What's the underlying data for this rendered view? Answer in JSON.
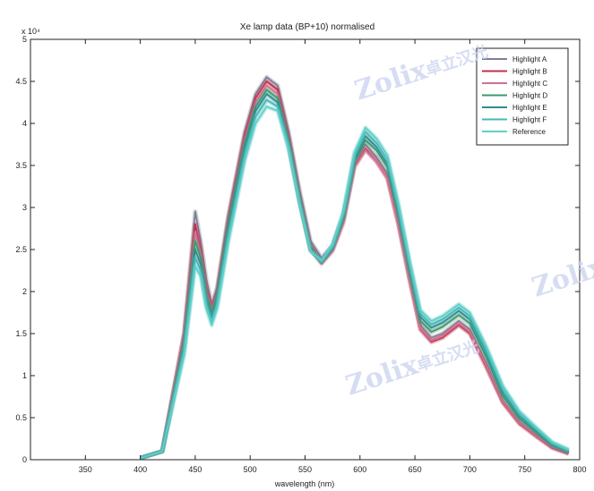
{
  "chart_data": {
    "type": "line",
    "title": "Xe lamp data (BP+10) normalised",
    "xlabel": "wavelength (nm)",
    "ylabel": "",
    "y_multiplier": "x 10⁴",
    "xlim": [
      300,
      800
    ],
    "ylim": [
      0,
      5
    ],
    "xticks": [
      "350",
      "400",
      "450",
      "500",
      "550",
      "600",
      "650",
      "700",
      "750",
      "800"
    ],
    "yticks": [
      "0",
      "0.5",
      "1",
      "1.5",
      "2",
      "2.5",
      "3",
      "3.5",
      "4",
      "4.5",
      "5"
    ],
    "grid": false,
    "legend_position": "top-right",
    "series": [
      {
        "name": "Highlight A",
        "color": "#7a7f95",
        "values": [
          [
            400,
            0.02
          ],
          [
            410,
            0.06
          ],
          [
            420,
            0.1
          ],
          [
            440,
            1.5
          ],
          [
            450,
            2.95
          ],
          [
            455,
            2.6
          ],
          [
            460,
            2.15
          ],
          [
            465,
            1.85
          ],
          [
            470,
            2.05
          ],
          [
            480,
            2.9
          ],
          [
            495,
            3.9
          ],
          [
            505,
            4.35
          ],
          [
            515,
            4.55
          ],
          [
            525,
            4.45
          ],
          [
            535,
            3.9
          ],
          [
            545,
            3.2
          ],
          [
            555,
            2.6
          ],
          [
            565,
            2.4
          ],
          [
            575,
            2.55
          ],
          [
            585,
            2.9
          ],
          [
            595,
            3.55
          ],
          [
            605,
            3.75
          ],
          [
            615,
            3.6
          ],
          [
            625,
            3.4
          ],
          [
            635,
            2.85
          ],
          [
            645,
            2.2
          ],
          [
            655,
            1.6
          ],
          [
            665,
            1.45
          ],
          [
            675,
            1.5
          ],
          [
            690,
            1.65
          ],
          [
            700,
            1.55
          ],
          [
            715,
            1.15
          ],
          [
            730,
            0.7
          ],
          [
            745,
            0.45
          ],
          [
            760,
            0.3
          ],
          [
            775,
            0.15
          ],
          [
            790,
            0.08
          ]
        ]
      },
      {
        "name": "Highlight B",
        "color": "#c0304a",
        "values": [
          [
            400,
            0.02
          ],
          [
            410,
            0.06
          ],
          [
            420,
            0.1
          ],
          [
            440,
            1.5
          ],
          [
            450,
            2.8
          ],
          [
            455,
            2.5
          ],
          [
            460,
            2.05
          ],
          [
            465,
            1.8
          ],
          [
            470,
            2.0
          ],
          [
            480,
            2.85
          ],
          [
            495,
            3.85
          ],
          [
            505,
            4.3
          ],
          [
            515,
            4.5
          ],
          [
            525,
            4.4
          ],
          [
            535,
            3.85
          ],
          [
            545,
            3.15
          ],
          [
            555,
            2.55
          ],
          [
            565,
            2.35
          ],
          [
            575,
            2.5
          ],
          [
            585,
            2.85
          ],
          [
            595,
            3.5
          ],
          [
            605,
            3.7
          ],
          [
            615,
            3.55
          ],
          [
            625,
            3.35
          ],
          [
            635,
            2.8
          ],
          [
            645,
            2.15
          ],
          [
            655,
            1.55
          ],
          [
            665,
            1.4
          ],
          [
            675,
            1.45
          ],
          [
            690,
            1.6
          ],
          [
            700,
            1.5
          ],
          [
            715,
            1.1
          ],
          [
            730,
            0.68
          ],
          [
            745,
            0.43
          ],
          [
            760,
            0.28
          ],
          [
            775,
            0.14
          ],
          [
            790,
            0.07
          ]
        ]
      },
      {
        "name": "Highlight C",
        "color": "#d07090",
        "values": [
          [
            400,
            0.02
          ],
          [
            410,
            0.06
          ],
          [
            420,
            0.1
          ],
          [
            440,
            1.45
          ],
          [
            450,
            2.7
          ],
          [
            455,
            2.45
          ],
          [
            460,
            2.0
          ],
          [
            465,
            1.78
          ],
          [
            470,
            1.98
          ],
          [
            480,
            2.8
          ],
          [
            495,
            3.8
          ],
          [
            505,
            4.25
          ],
          [
            515,
            4.45
          ],
          [
            525,
            4.35
          ],
          [
            535,
            3.8
          ],
          [
            545,
            3.1
          ],
          [
            555,
            2.5
          ],
          [
            565,
            2.33
          ],
          [
            575,
            2.48
          ],
          [
            585,
            2.82
          ],
          [
            595,
            3.48
          ],
          [
            605,
            3.68
          ],
          [
            615,
            3.55
          ],
          [
            625,
            3.35
          ],
          [
            635,
            2.8
          ],
          [
            645,
            2.15
          ],
          [
            655,
            1.56
          ],
          [
            665,
            1.42
          ],
          [
            675,
            1.48
          ],
          [
            690,
            1.62
          ],
          [
            700,
            1.52
          ],
          [
            715,
            1.12
          ],
          [
            730,
            0.69
          ],
          [
            745,
            0.44
          ],
          [
            760,
            0.29
          ],
          [
            775,
            0.15
          ],
          [
            790,
            0.08
          ]
        ]
      },
      {
        "name": "Highlight D",
        "color": "#3c9a6c",
        "values": [
          [
            400,
            0.02
          ],
          [
            410,
            0.06
          ],
          [
            420,
            0.1
          ],
          [
            440,
            1.4
          ],
          [
            450,
            2.6
          ],
          [
            455,
            2.4
          ],
          [
            460,
            1.95
          ],
          [
            465,
            1.75
          ],
          [
            470,
            1.95
          ],
          [
            480,
            2.78
          ],
          [
            495,
            3.75
          ],
          [
            505,
            4.2
          ],
          [
            515,
            4.4
          ],
          [
            525,
            4.3
          ],
          [
            535,
            3.78
          ],
          [
            545,
            3.1
          ],
          [
            555,
            2.52
          ],
          [
            565,
            2.35
          ],
          [
            575,
            2.52
          ],
          [
            585,
            2.88
          ],
          [
            595,
            3.55
          ],
          [
            605,
            3.8
          ],
          [
            615,
            3.68
          ],
          [
            625,
            3.48
          ],
          [
            635,
            2.92
          ],
          [
            645,
            2.25
          ],
          [
            655,
            1.65
          ],
          [
            665,
            1.52
          ],
          [
            675,
            1.58
          ],
          [
            690,
            1.72
          ],
          [
            700,
            1.62
          ],
          [
            715,
            1.22
          ],
          [
            730,
            0.76
          ],
          [
            745,
            0.49
          ],
          [
            760,
            0.33
          ],
          [
            775,
            0.17
          ],
          [
            790,
            0.09
          ]
        ]
      },
      {
        "name": "Highlight E",
        "color": "#2e8c8e",
        "values": [
          [
            400,
            0.02
          ],
          [
            410,
            0.06
          ],
          [
            420,
            0.1
          ],
          [
            440,
            1.35
          ],
          [
            450,
            2.5
          ],
          [
            455,
            2.32
          ],
          [
            460,
            1.9
          ],
          [
            465,
            1.7
          ],
          [
            470,
            1.9
          ],
          [
            480,
            2.72
          ],
          [
            495,
            3.7
          ],
          [
            505,
            4.15
          ],
          [
            515,
            4.35
          ],
          [
            525,
            4.25
          ],
          [
            535,
            3.75
          ],
          [
            545,
            3.08
          ],
          [
            555,
            2.5
          ],
          [
            565,
            2.35
          ],
          [
            575,
            2.52
          ],
          [
            585,
            2.9
          ],
          [
            595,
            3.58
          ],
          [
            605,
            3.85
          ],
          [
            615,
            3.72
          ],
          [
            625,
            3.52
          ],
          [
            635,
            2.96
          ],
          [
            645,
            2.3
          ],
          [
            655,
            1.7
          ],
          [
            665,
            1.57
          ],
          [
            675,
            1.63
          ],
          [
            690,
            1.77
          ],
          [
            700,
            1.67
          ],
          [
            715,
            1.27
          ],
          [
            730,
            0.8
          ],
          [
            745,
            0.52
          ],
          [
            760,
            0.35
          ],
          [
            775,
            0.18
          ],
          [
            790,
            0.1
          ]
        ]
      },
      {
        "name": "Highlight F",
        "color": "#48b8b8",
        "values": [
          [
            400,
            0.02
          ],
          [
            410,
            0.06
          ],
          [
            420,
            0.1
          ],
          [
            440,
            1.3
          ],
          [
            450,
            2.4
          ],
          [
            455,
            2.25
          ],
          [
            460,
            1.85
          ],
          [
            465,
            1.65
          ],
          [
            470,
            1.85
          ],
          [
            480,
            2.65
          ],
          [
            495,
            3.62
          ],
          [
            505,
            4.08
          ],
          [
            515,
            4.28
          ],
          [
            525,
            4.2
          ],
          [
            535,
            3.72
          ],
          [
            545,
            3.06
          ],
          [
            555,
            2.49
          ],
          [
            565,
            2.36
          ],
          [
            575,
            2.54
          ],
          [
            585,
            2.93
          ],
          [
            595,
            3.62
          ],
          [
            605,
            3.9
          ],
          [
            615,
            3.77
          ],
          [
            625,
            3.57
          ],
          [
            635,
            3.0
          ],
          [
            645,
            2.34
          ],
          [
            655,
            1.74
          ],
          [
            665,
            1.61
          ],
          [
            675,
            1.67
          ],
          [
            690,
            1.81
          ],
          [
            700,
            1.71
          ],
          [
            715,
            1.31
          ],
          [
            730,
            0.84
          ],
          [
            745,
            0.55
          ],
          [
            760,
            0.37
          ],
          [
            775,
            0.2
          ],
          [
            790,
            0.11
          ]
        ]
      },
      {
        "name": "Reference",
        "color": "#5fcfc8",
        "values": [
          [
            400,
            0.02
          ],
          [
            410,
            0.06
          ],
          [
            420,
            0.1
          ],
          [
            440,
            1.25
          ],
          [
            450,
            2.3
          ],
          [
            455,
            2.18
          ],
          [
            460,
            1.8
          ],
          [
            465,
            1.6
          ],
          [
            470,
            1.8
          ],
          [
            480,
            2.58
          ],
          [
            495,
            3.55
          ],
          [
            505,
            4.0
          ],
          [
            515,
            4.2
          ],
          [
            525,
            4.15
          ],
          [
            535,
            3.7
          ],
          [
            545,
            3.05
          ],
          [
            555,
            2.48
          ],
          [
            565,
            2.37
          ],
          [
            575,
            2.56
          ],
          [
            585,
            2.96
          ],
          [
            595,
            3.66
          ],
          [
            605,
            3.95
          ],
          [
            615,
            3.82
          ],
          [
            625,
            3.62
          ],
          [
            635,
            3.05
          ],
          [
            645,
            2.38
          ],
          [
            655,
            1.78
          ],
          [
            665,
            1.65
          ],
          [
            675,
            1.71
          ],
          [
            690,
            1.85
          ],
          [
            700,
            1.75
          ],
          [
            715,
            1.35
          ],
          [
            730,
            0.88
          ],
          [
            745,
            0.58
          ],
          [
            760,
            0.39
          ],
          [
            775,
            0.21
          ],
          [
            790,
            0.12
          ]
        ]
      }
    ]
  },
  "watermark": {
    "brand": "Zolix",
    "cn": "卓立汉光"
  }
}
